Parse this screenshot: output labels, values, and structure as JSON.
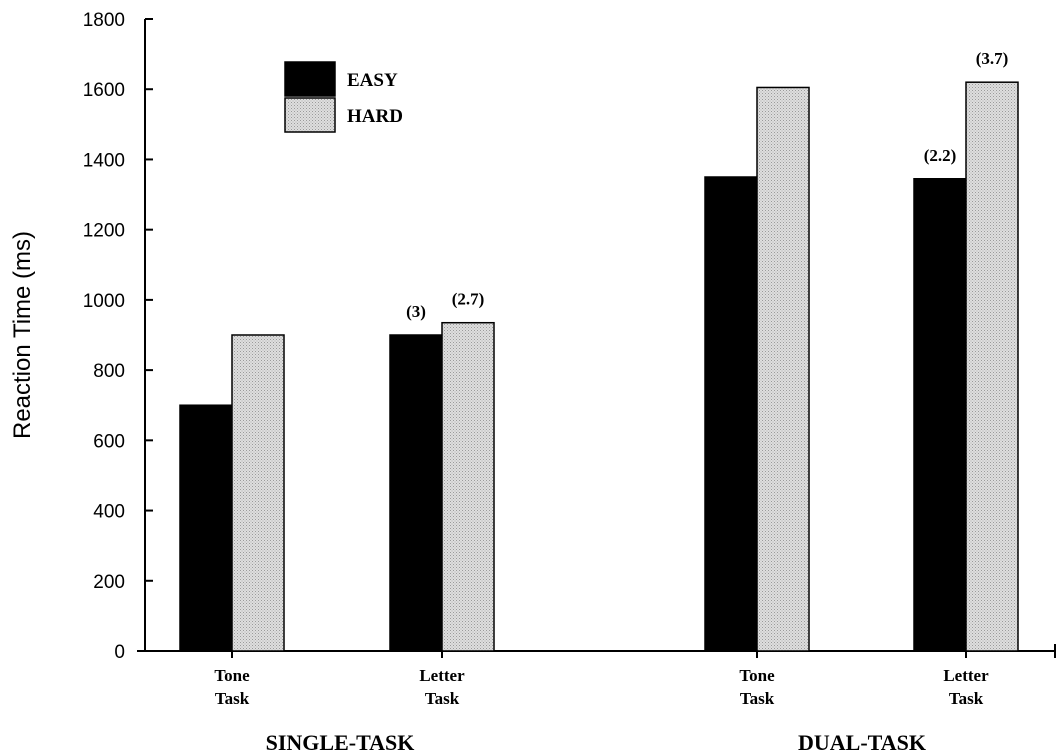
{
  "chart_data": {
    "type": "bar",
    "ylabel": "Reaction Time (ms)",
    "ylim": [
      0,
      1800
    ],
    "yticks": [
      0,
      200,
      400,
      600,
      800,
      1000,
      1200,
      1400,
      1600,
      1800
    ],
    "groups": [
      {
        "label": "SINGLE-TASK",
        "categories": [
          {
            "label": [
              "Tone",
              "Task"
            ],
            "easy": 700,
            "hard": 900,
            "easy_annotation": "",
            "hard_annotation": ""
          },
          {
            "label": [
              "Letter",
              "Task"
            ],
            "easy": 900,
            "hard": 935,
            "easy_annotation": "(3)",
            "hard_annotation": "(2.7)"
          }
        ]
      },
      {
        "label": "DUAL-TASK",
        "categories": [
          {
            "label": [
              "Tone",
              "Task"
            ],
            "easy": 1350,
            "hard": 1605,
            "easy_annotation": "",
            "hard_annotation": ""
          },
          {
            "label": [
              "Letter",
              "Task"
            ],
            "easy": 1345,
            "hard": 1620,
            "easy_annotation": "(2.2)",
            "hard_annotation": "(3.7)"
          }
        ]
      }
    ],
    "series": [
      {
        "name": "EASY",
        "key": "easy",
        "color": "#000000"
      },
      {
        "name": "HARD",
        "key": "hard",
        "color": "#d6d6d6"
      }
    ],
    "legend_position": "top-left",
    "grid": false
  }
}
